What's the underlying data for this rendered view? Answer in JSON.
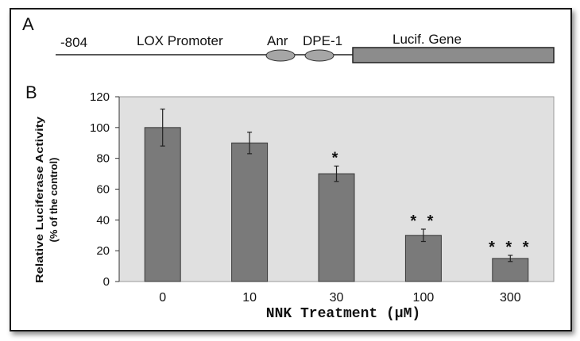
{
  "panel_a": {
    "label": "A",
    "position_label": "-804",
    "promoter_label": "LOX Promoter",
    "element1_label": "Anr",
    "element2_label": "DPE-1",
    "gene_label": "Lucif. Gene",
    "gene_color": "#8c8c8c"
  },
  "panel_b": {
    "label": "B"
  },
  "chart_data": {
    "type": "bar",
    "categories": [
      "0",
      "10",
      "30",
      "100",
      "300"
    ],
    "values": [
      100,
      90,
      70,
      30,
      15
    ],
    "errors": [
      12,
      7,
      5,
      4,
      2
    ],
    "significance": [
      "",
      "",
      "*",
      "**",
      "***"
    ],
    "xlabel": "NNK Treatment (μM)",
    "ylabel": "Relative Luciferase Activity",
    "ylabel_sub": "(% of the control)",
    "ylim": [
      0,
      120
    ],
    "yticks": [
      0,
      20,
      40,
      60,
      80,
      100,
      120
    ],
    "grid": false,
    "bar_color": "#7a7a7a",
    "plot_background": "#e0e0e0"
  }
}
